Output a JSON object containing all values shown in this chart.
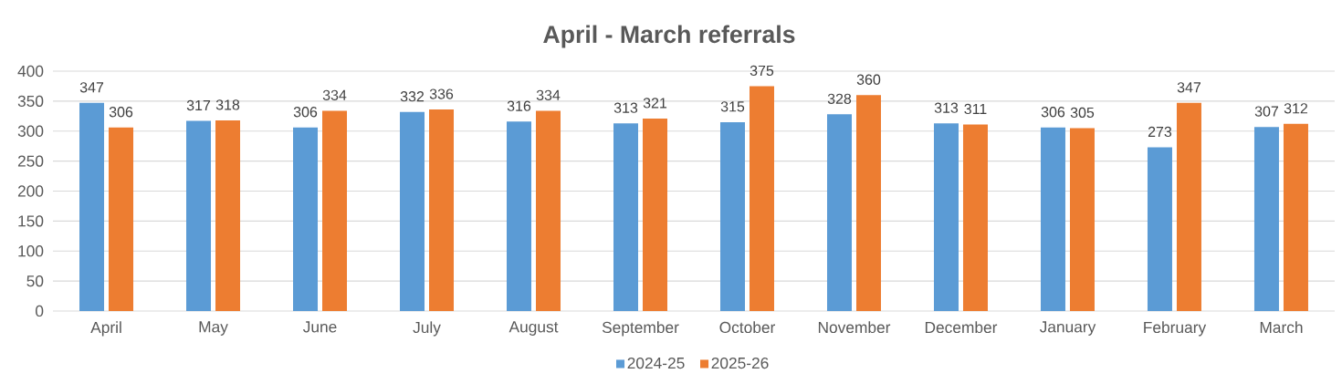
{
  "chart_data": {
    "type": "bar",
    "title": "April - March referrals",
    "categories": [
      "April",
      "May",
      "June",
      "July",
      "August",
      "September",
      "October",
      "November",
      "December",
      "January",
      "February",
      "March"
    ],
    "series": [
      {
        "name": "2024-25",
        "color": "#5b9bd5",
        "values": [
          347,
          317,
          306,
          332,
          316,
          313,
          315,
          328,
          313,
          306,
          273,
          307
        ]
      },
      {
        "name": "2025-26",
        "color": "#ed7d31",
        "values": [
          306,
          318,
          334,
          336,
          334,
          321,
          375,
          360,
          311,
          305,
          347,
          312
        ]
      }
    ],
    "ylim": [
      0,
      400
    ],
    "yticks": [
      0,
      50,
      100,
      150,
      200,
      250,
      300,
      350,
      400
    ],
    "grid": "y",
    "legend": "bottom",
    "data_labels": true
  }
}
